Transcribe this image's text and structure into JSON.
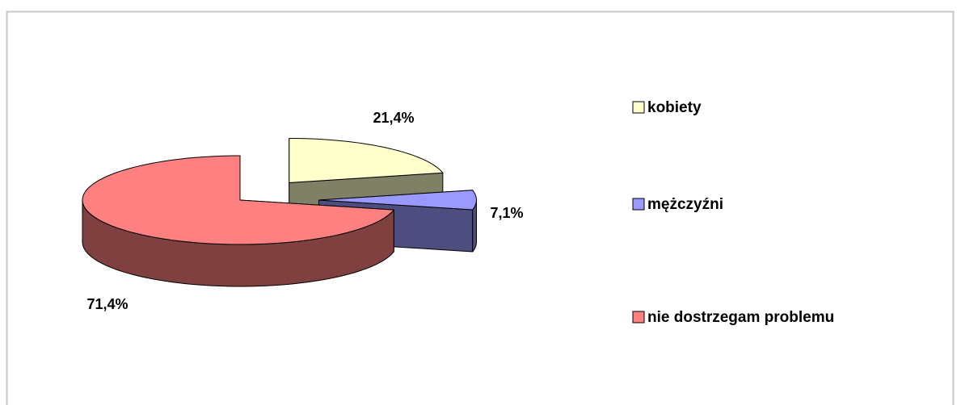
{
  "chart_data": {
    "type": "pie",
    "categories": [
      "kobiety",
      "mężczyźni",
      "nie dostrzegam problemu"
    ],
    "values": [
      21.4,
      7.1,
      71.4
    ],
    "value_labels": [
      "21,4%",
      "7,1%",
      "71,4%"
    ],
    "colors": [
      "#FFFFCC",
      "#9999FF",
      "#FF8080"
    ],
    "legend": "right"
  }
}
